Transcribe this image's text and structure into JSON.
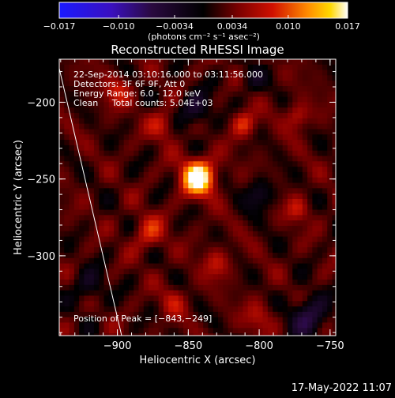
{
  "chart_data": {
    "type": "heatmap",
    "title": "Reconstructed RHESSI Image",
    "xlabel": "Heliocentric X (arcsec)",
    "ylabel": "Heliocentric Y (arcsec)",
    "xlim": [
      -941,
      -746
    ],
    "ylim": [
      -352,
      -172
    ],
    "x_ticks": [
      -900,
      -850,
      -800,
      -750
    ],
    "y_ticks": [
      -200,
      -250,
      -300
    ],
    "x_tick_labels": [
      "−900",
      "−850",
      "−800",
      "−750"
    ],
    "y_tick_labels": [
      "−200",
      "−250",
      "−300"
    ],
    "colorbar": {
      "range": [
        -0.017,
        0.017
      ],
      "tick_values": [
        -0.017,
        -0.01,
        -0.0034,
        0.0034,
        0.01,
        0.017
      ],
      "tick_labels": [
        "−0.017",
        "−0.010",
        "−0.0034",
        "0.0034",
        "0.010",
        "0.017"
      ],
      "units": "(photons cm⁻² s⁻¹ asec⁻²)",
      "colormap": "sdo-aia-like: blue-violet-black-red-orange-yellow-white"
    },
    "annotations": [
      "22-Sep-2014 03:10:16.000 to 03:11:56.000",
      "Detectors: 3F 6F 9F, Att 0",
      "Energy Range: 6.0 - 12.0 keV",
      "Clean     Total counts: 5.04E+03"
    ],
    "peak_label": "Position of Peak = [−843,−249]",
    "peak": {
      "x": -843,
      "y": -249,
      "value": 0.017
    },
    "limb_line": [
      [
        -941,
        -178
      ],
      [
        -897,
        -352
      ]
    ],
    "hot_spots": [
      {
        "x": -843,
        "y": -249,
        "amp": 1.0,
        "sigma": 8
      },
      {
        "x": -811,
        "y": -214,
        "amp": 0.38,
        "sigma": 6
      },
      {
        "x": -878,
        "y": -285,
        "amp": 0.32,
        "sigma": 8
      },
      {
        "x": -773,
        "y": -209,
        "amp": 0.3,
        "sigma": 6
      },
      {
        "x": -900,
        "y": -193,
        "amp": 0.28,
        "sigma": 7
      },
      {
        "x": -830,
        "y": -305,
        "amp": 0.26,
        "sigma": 7
      },
      {
        "x": -773,
        "y": -270,
        "amp": 0.27,
        "sigma": 6
      },
      {
        "x": -868,
        "y": -215,
        "amp": 0.3,
        "sigma": 7
      },
      {
        "x": -800,
        "y": -340,
        "amp": 0.24,
        "sigma": 7
      },
      {
        "x": -860,
        "y": -330,
        "amp": 0.22,
        "sigma": 7
      }
    ],
    "cold_spots": [
      {
        "x": -845,
        "y": -205,
        "amp": -0.35,
        "sigma": 8
      },
      {
        "x": -800,
        "y": -260,
        "amp": -0.3,
        "sigma": 7
      },
      {
        "x": -765,
        "y": -340,
        "amp": -0.45,
        "sigma": 9
      },
      {
        "x": -920,
        "y": -320,
        "amp": -0.25,
        "sigma": 8
      },
      {
        "x": -805,
        "y": -185,
        "amp": -0.22,
        "sigma": 6
      }
    ]
  },
  "timestamp": "17-May-2022 11:07",
  "colors": {
    "background": "#000000",
    "axis": "#ffffff",
    "text": "#ffffff"
  }
}
